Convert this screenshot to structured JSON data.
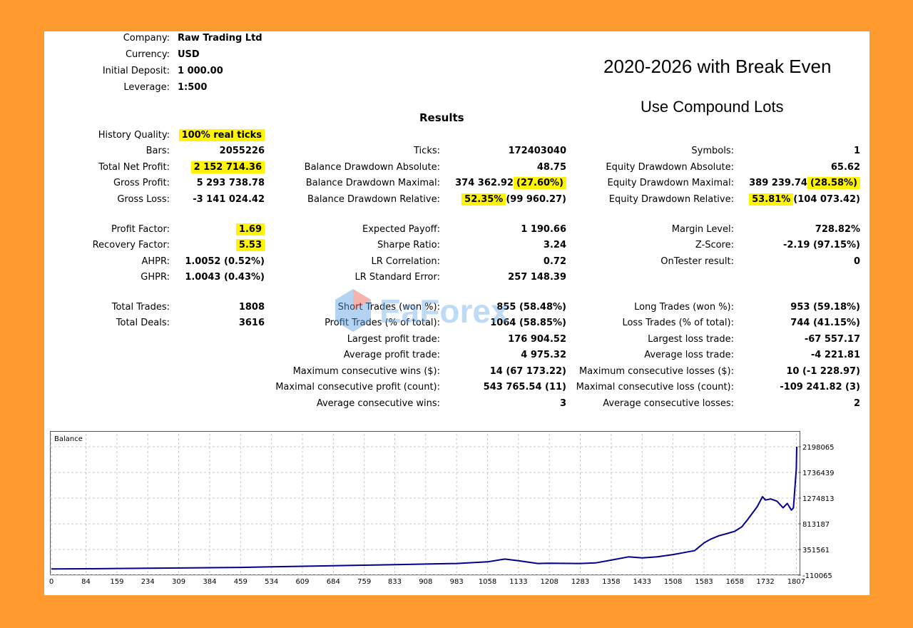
{
  "header": {
    "company_label": "Company:",
    "company_value": "Raw Trading Ltd",
    "currency_label": "Currency:",
    "currency_value": "USD",
    "deposit_label": "Initial Deposit:",
    "deposit_value": "1 000.00",
    "leverage_label": "Leverage:",
    "leverage_value": "1:500"
  },
  "annotations": {
    "title": "2020-2026 with Break Even",
    "subtitle": "Use Compound Lots"
  },
  "results_heading": "Results",
  "watermark_text": "EaForex",
  "highlight_color": "#FFF500",
  "left_stats": [
    {
      "label": "History Quality:",
      "value": "100% real ticks",
      "highlight": true
    },
    {
      "label": "Bars:",
      "value": "2055226"
    },
    {
      "label": "Total Net Profit:",
      "value": "2 152 714.36",
      "highlight": true
    },
    {
      "label": "Gross Profit:",
      "value": "5 293 738.78"
    },
    {
      "label": "Gross Loss:",
      "value": "-3 141 024.42"
    },
    {
      "label": "Profit Factor:",
      "value": "1.69",
      "highlight": true
    },
    {
      "label": "Recovery Factor:",
      "value": "5.53",
      "highlight": true
    },
    {
      "label": "AHPR:",
      "value": "1.0052 (0.52%)"
    },
    {
      "label": "GHPR:",
      "value": "1.0043 (0.43%)"
    },
    {
      "label": "Total Trades:",
      "value": "1808"
    },
    {
      "label": "Total Deals:",
      "value": "3616"
    }
  ],
  "mid_stats": [
    {
      "label": "Ticks:",
      "value": "172403040"
    },
    {
      "label": "Balance Drawdown Absolute:",
      "value": "48.75"
    },
    {
      "label": "Balance Drawdown Maximal:",
      "value": "374 362.92",
      "value_hl": "(27.60%)"
    },
    {
      "label": "Balance Drawdown Relative:",
      "value_hl": "52.35%",
      "value": "(99 960.27)"
    },
    {
      "label": "Expected Payoff:",
      "value": "1 190.66"
    },
    {
      "label": "Sharpe Ratio:",
      "value": "3.24"
    },
    {
      "label": "LR Correlation:",
      "value": "0.72"
    },
    {
      "label": "LR Standard Error:",
      "value": "257 148.39"
    },
    {
      "label": "Short Trades (won %):",
      "value": "855 (58.48%)"
    },
    {
      "label": "Profit Trades (% of total):",
      "value": "1064 (58.85%)"
    },
    {
      "label": "Largest profit trade:",
      "value": "176 904.52"
    },
    {
      "label": "Average profit trade:",
      "value": "4 975.32"
    },
    {
      "label": "Maximum consecutive wins ($):",
      "value": "14 (67 173.22)"
    },
    {
      "label": "Maximal consecutive profit (count):",
      "value": "543 765.54 (11)"
    },
    {
      "label": "Average consecutive wins:",
      "value": "3"
    }
  ],
  "right_stats": [
    {
      "label": "Symbols:",
      "value": "1"
    },
    {
      "label": "Equity Drawdown Absolute:",
      "value": "65.62"
    },
    {
      "label": "Equity Drawdown Maximal:",
      "value": "389 239.74",
      "value_hl": "(28.58%)"
    },
    {
      "label": "Equity Drawdown Relative:",
      "value_hl": "53.81%",
      "value": "(104 073.42)"
    },
    {
      "label": "Margin Level:",
      "value": "728.82%"
    },
    {
      "label": "Z-Score:",
      "value": "-2.19 (97.15%)"
    },
    {
      "label": "OnTester result:",
      "value": "0"
    },
    {
      "label": "Long Trades (won %):",
      "value": "953 (59.18%)"
    },
    {
      "label": "Loss Trades (% of total):",
      "value": "744 (41.15%)"
    },
    {
      "label": "Largest loss trade:",
      "value": "-67 557.17"
    },
    {
      "label": "Average loss trade:",
      "value": "-4 221.81"
    },
    {
      "label": "Maximum consecutive losses ($):",
      "value": "10 (-1 228.97)"
    },
    {
      "label": "Maximal consecutive loss (count):",
      "value": "-109 241.82 (3)"
    },
    {
      "label": "Average consecutive losses:",
      "value": "2"
    }
  ],
  "chart_data": {
    "type": "line",
    "title": "Balance",
    "xlabel": "",
    "ylabel": "",
    "x_ticks": [
      "0",
      "84",
      "159",
      "234",
      "309",
      "384",
      "459",
      "534",
      "609",
      "684",
      "759",
      "833",
      "908",
      "983",
      "1058",
      "1133",
      "1208",
      "1283",
      "1358",
      "1433",
      "1508",
      "1583",
      "1658",
      "1732",
      "1807"
    ],
    "y_ticks": [
      "2198065",
      "1736439",
      "1274813",
      "813187",
      "351561",
      "-110065"
    ],
    "xlim": [
      0,
      1808
    ],
    "ylim": [
      -110065,
      2198065
    ],
    "grid": true,
    "line_color": "#00008B",
    "series": [
      {
        "x": [
          0,
          84,
          159,
          234,
          309,
          384,
          459,
          534,
          609,
          684,
          759,
          833,
          908,
          983,
          1058,
          1100,
          1133,
          1180,
          1208,
          1283,
          1320,
          1358,
          1400,
          1433,
          1470,
          1508,
          1530,
          1545,
          1560,
          1583,
          1600,
          1620,
          1640,
          1658,
          1675,
          1690,
          1700,
          1712,
          1725,
          1732,
          1745,
          1760,
          1775,
          1785,
          1795,
          1800,
          1803,
          1807,
          1808
        ],
        "y": [
          1000,
          5000,
          10000,
          15000,
          20000,
          25000,
          30000,
          40000,
          50000,
          60000,
          70000,
          80000,
          90000,
          100000,
          130000,
          180000,
          150000,
          100000,
          105000,
          100000,
          110000,
          160000,
          220000,
          200000,
          220000,
          260000,
          290000,
          310000,
          330000,
          470000,
          540000,
          600000,
          640000,
          680000,
          760000,
          900000,
          1000000,
          1120000,
          1300000,
          1240000,
          1260000,
          1220000,
          1100000,
          1180000,
          1060000,
          1100000,
          1400000,
          1800000,
          2198065
        ]
      }
    ]
  }
}
